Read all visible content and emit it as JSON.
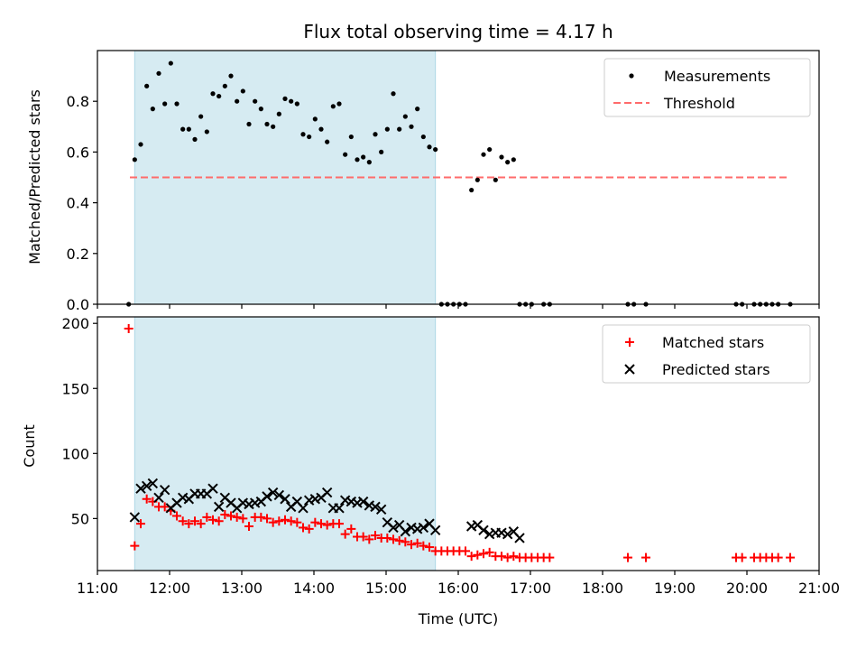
{
  "chart_data": [
    {
      "type": "scatter",
      "title": "Flux total observing time = 4.17 h",
      "xlabel": "",
      "ylabel": "Matched/Predicted stars",
      "xlim": [
        "11:00",
        "21:00"
      ],
      "ylim": [
        0,
        1.0
      ],
      "yticks": [
        "0.0",
        "0.2",
        "0.4",
        "0.6",
        "0.8"
      ],
      "highlight_span": {
        "start": "11:31",
        "end": "15:41",
        "color": "#add8e6"
      },
      "legend": {
        "position": "top-right",
        "entries": [
          "Measurements",
          "Threshold"
        ]
      },
      "threshold": {
        "name": "Threshold",
        "value": 0.5,
        "x_start": "11:27",
        "x_end": "20:36",
        "color": "#ff6b6b",
        "style": "dashed"
      },
      "series": [
        {
          "name": "Measurements",
          "color": "#000000",
          "points": [
            [
              "11:26",
              0.0
            ],
            [
              "11:31",
              0.57
            ],
            [
              "11:36",
              0.63
            ],
            [
              "11:41",
              0.86
            ],
            [
              "11:46",
              0.77
            ],
            [
              "11:51",
              0.91
            ],
            [
              "11:56",
              0.79
            ],
            [
              "12:01",
              0.95
            ],
            [
              "12:06",
              0.79
            ],
            [
              "12:11",
              0.69
            ],
            [
              "12:16",
              0.69
            ],
            [
              "12:21",
              0.65
            ],
            [
              "12:26",
              0.74
            ],
            [
              "12:31",
              0.68
            ],
            [
              "12:36",
              0.83
            ],
            [
              "12:41",
              0.82
            ],
            [
              "12:46",
              0.86
            ],
            [
              "12:51",
              0.9
            ],
            [
              "12:56",
              0.8
            ],
            [
              "13:01",
              0.84
            ],
            [
              "13:06",
              0.71
            ],
            [
              "13:11",
              0.8
            ],
            [
              "13:16",
              0.77
            ],
            [
              "13:21",
              0.71
            ],
            [
              "13:26",
              0.7
            ],
            [
              "13:31",
              0.75
            ],
            [
              "13:36",
              0.81
            ],
            [
              "13:41",
              0.8
            ],
            [
              "13:46",
              0.79
            ],
            [
              "13:51",
              0.67
            ],
            [
              "13:56",
              0.66
            ],
            [
              "14:01",
              0.73
            ],
            [
              "14:06",
              0.69
            ],
            [
              "14:11",
              0.64
            ],
            [
              "14:16",
              0.78
            ],
            [
              "14:21",
              0.79
            ],
            [
              "14:26",
              0.59
            ],
            [
              "14:31",
              0.66
            ],
            [
              "14:36",
              0.57
            ],
            [
              "14:41",
              0.58
            ],
            [
              "14:46",
              0.56
            ],
            [
              "14:51",
              0.67
            ],
            [
              "14:56",
              0.6
            ],
            [
              "15:01",
              0.69
            ],
            [
              "15:06",
              0.83
            ],
            [
              "15:11",
              0.69
            ],
            [
              "15:16",
              0.74
            ],
            [
              "15:21",
              0.7
            ],
            [
              "15:26",
              0.77
            ],
            [
              "15:31",
              0.66
            ],
            [
              "15:36",
              0.62
            ],
            [
              "15:41",
              0.61
            ],
            [
              "15:46",
              0.0
            ],
            [
              "15:51",
              0.0
            ],
            [
              "15:56",
              0.0
            ],
            [
              "16:01",
              0.0
            ],
            [
              "16:06",
              0.0
            ],
            [
              "16:11",
              0.45
            ],
            [
              "16:16",
              0.49
            ],
            [
              "16:21",
              0.59
            ],
            [
              "16:26",
              0.61
            ],
            [
              "16:31",
              0.49
            ],
            [
              "16:36",
              0.58
            ],
            [
              "16:41",
              0.56
            ],
            [
              "16:46",
              0.57
            ],
            [
              "16:51",
              0.0
            ],
            [
              "16:56",
              0.0
            ],
            [
              "17:01",
              0.0
            ],
            [
              "17:11",
              0.0
            ],
            [
              "17:16",
              0.0
            ],
            [
              "18:21",
              0.0
            ],
            [
              "18:26",
              0.0
            ],
            [
              "18:36",
              0.0
            ],
            [
              "19:51",
              0.0
            ],
            [
              "19:56",
              0.0
            ],
            [
              "20:06",
              0.0
            ],
            [
              "20:11",
              0.0
            ],
            [
              "20:16",
              0.0
            ],
            [
              "20:21",
              0.0
            ],
            [
              "20:26",
              0.0
            ],
            [
              "20:36",
              0.0
            ]
          ]
        }
      ]
    },
    {
      "type": "scatter",
      "title": "",
      "xlabel": "Time (UTC)",
      "ylabel": "Count",
      "xlim": [
        "11:00",
        "21:00"
      ],
      "ylim": [
        10,
        205
      ],
      "yticks": [
        "50",
        "100",
        "150",
        "200"
      ],
      "xticks": [
        "11:00",
        "12:00",
        "13:00",
        "14:00",
        "15:00",
        "16:00",
        "17:00",
        "18:00",
        "19:00",
        "20:00",
        "21:00"
      ],
      "highlight_span": {
        "start": "11:31",
        "end": "15:41",
        "color": "#add8e6"
      },
      "legend": {
        "position": "top-right",
        "entries": [
          "Matched stars",
          "Predicted stars"
        ]
      },
      "series": [
        {
          "name": "Matched stars",
          "color": "#ff0000",
          "marker": "plus",
          "points": [
            [
              "11:26",
              196
            ],
            [
              "11:31",
              29
            ],
            [
              "11:36",
              46
            ],
            [
              "11:41",
              65
            ],
            [
              "11:46",
              63
            ],
            [
              "11:51",
              59
            ],
            [
              "11:56",
              59
            ],
            [
              "12:01",
              56
            ],
            [
              "12:06",
              52
            ],
            [
              "12:11",
              48
            ],
            [
              "12:16",
              46
            ],
            [
              "12:21",
              48
            ],
            [
              "12:26",
              46
            ],
            [
              "12:31",
              51
            ],
            [
              "12:36",
              49
            ],
            [
              "12:41",
              48
            ],
            [
              "12:46",
              53
            ],
            [
              "12:51",
              52
            ],
            [
              "12:56",
              51
            ],
            [
              "13:01",
              50
            ],
            [
              "13:06",
              44
            ],
            [
              "13:11",
              51
            ],
            [
              "13:16",
              51
            ],
            [
              "13:21",
              50
            ],
            [
              "13:26",
              47
            ],
            [
              "13:31",
              48
            ],
            [
              "13:36",
              49
            ],
            [
              "13:41",
              48
            ],
            [
              "13:46",
              47
            ],
            [
              "13:51",
              43
            ],
            [
              "13:56",
              42
            ],
            [
              "14:01",
              47
            ],
            [
              "14:06",
              46
            ],
            [
              "14:11",
              45
            ],
            [
              "14:16",
              46
            ],
            [
              "14:21",
              46
            ],
            [
              "14:26",
              38
            ],
            [
              "14:31",
              42
            ],
            [
              "14:36",
              36
            ],
            [
              "14:41",
              36
            ],
            [
              "14:46",
              34
            ],
            [
              "14:51",
              37
            ],
            [
              "14:56",
              35
            ],
            [
              "15:01",
              35
            ],
            [
              "15:06",
              34
            ],
            [
              "15:11",
              33
            ],
            [
              "15:16",
              32
            ],
            [
              "15:21",
              30
            ],
            [
              "15:26",
              31
            ],
            [
              "15:31",
              29
            ],
            [
              "15:36",
              28
            ],
            [
              "15:41",
              25
            ],
            [
              "15:46",
              25
            ],
            [
              "15:51",
              25
            ],
            [
              "15:56",
              25
            ],
            [
              "16:01",
              25
            ],
            [
              "16:06",
              25
            ],
            [
              "16:11",
              21
            ],
            [
              "16:16",
              22
            ],
            [
              "16:21",
              23
            ],
            [
              "16:26",
              24
            ],
            [
              "16:31",
              21
            ],
            [
              "16:36",
              21
            ],
            [
              "16:41",
              20
            ],
            [
              "16:46",
              21
            ],
            [
              "16:51",
              20
            ],
            [
              "16:56",
              20
            ],
            [
              "17:01",
              20
            ],
            [
              "17:06",
              20
            ],
            [
              "17:11",
              20
            ],
            [
              "17:16",
              20
            ],
            [
              "18:21",
              20
            ],
            [
              "18:36",
              20
            ],
            [
              "19:51",
              20
            ],
            [
              "19:56",
              20
            ],
            [
              "20:06",
              20
            ],
            [
              "20:11",
              20
            ],
            [
              "20:16",
              20
            ],
            [
              "20:21",
              20
            ],
            [
              "20:26",
              20
            ],
            [
              "20:36",
              20
            ]
          ]
        },
        {
          "name": "Predicted stars",
          "color": "#000000",
          "marker": "x",
          "points": [
            [
              "11:31",
              51
            ],
            [
              "11:36",
              73
            ],
            [
              "11:41",
              75
            ],
            [
              "11:46",
              77
            ],
            [
              "11:51",
              66
            ],
            [
              "11:56",
              72
            ],
            [
              "12:01",
              58
            ],
            [
              "12:06",
              62
            ],
            [
              "12:11",
              66
            ],
            [
              "12:16",
              65
            ],
            [
              "12:21",
              69
            ],
            [
              "12:26",
              69
            ],
            [
              "12:31",
              69
            ],
            [
              "12:36",
              73
            ],
            [
              "12:41",
              59
            ],
            [
              "12:46",
              66
            ],
            [
              "12:51",
              62
            ],
            [
              "12:56",
              58
            ],
            [
              "13:01",
              62
            ],
            [
              "13:06",
              61
            ],
            [
              "13:11",
              62
            ],
            [
              "13:16",
              63
            ],
            [
              "13:21",
              67
            ],
            [
              "13:26",
              70
            ],
            [
              "13:31",
              68
            ],
            [
              "13:36",
              65
            ],
            [
              "13:41",
              59
            ],
            [
              "13:46",
              63
            ],
            [
              "13:51",
              58
            ],
            [
              "13:56",
              64
            ],
            [
              "14:01",
              65
            ],
            [
              "14:06",
              66
            ],
            [
              "14:11",
              70
            ],
            [
              "14:16",
              58
            ],
            [
              "14:21",
              58
            ],
            [
              "14:26",
              64
            ],
            [
              "14:31",
              63
            ],
            [
              "14:36",
              62
            ],
            [
              "14:41",
              63
            ],
            [
              "14:46",
              60
            ],
            [
              "14:51",
              59
            ],
            [
              "14:56",
              57
            ],
            [
              "15:01",
              47
            ],
            [
              "15:06",
              43
            ],
            [
              "15:11",
              45
            ],
            [
              "15:16",
              40
            ],
            [
              "15:21",
              43
            ],
            [
              "15:26",
              42
            ],
            [
              "15:31",
              43
            ],
            [
              "15:36",
              46
            ],
            [
              "15:41",
              41
            ],
            [
              "16:11",
              44
            ],
            [
              "16:16",
              45
            ],
            [
              "16:21",
              41
            ],
            [
              "16:26",
              38
            ],
            [
              "16:31",
              39
            ],
            [
              "16:36",
              39
            ],
            [
              "16:41",
              38
            ],
            [
              "16:46",
              40
            ],
            [
              "16:51",
              35
            ]
          ]
        }
      ]
    }
  ]
}
